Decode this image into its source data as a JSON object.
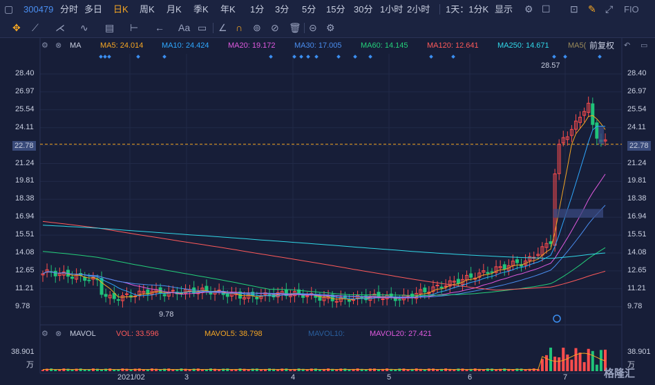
{
  "toolbar": {
    "code": "300479",
    "periods": [
      "分时",
      "多日",
      "日K",
      "周K",
      "月K",
      "季K",
      "年K",
      "1分",
      "3分",
      "5分",
      "15分",
      "30分",
      "1小时",
      "2小时",
      "1天：1分K",
      "显示",
      "FIO"
    ],
    "active": "日K"
  },
  "ma_legend": {
    "label": "MA",
    "items": [
      {
        "name": "MA5: 24.014",
        "color": "#f5a623"
      },
      {
        "name": "MA10: 24.424",
        "color": "#2fa8ff"
      },
      {
        "name": "MA20: 19.172",
        "color": "#e05adf"
      },
      {
        "name": "MA30: 17.005",
        "color": "#4a8ef0"
      },
      {
        "name": "MA60: 14.145",
        "color": "#24d07a"
      },
      {
        "name": "MA120: 12.641",
        "color": "#ff5a5a"
      },
      {
        "name": "MA250: 14.671",
        "color": "#31d8e8"
      },
      {
        "name": "MA5(",
        "color": "#9a8a5a"
      }
    ],
    "fq": "前复权"
  },
  "price_axis": [
    "28.40",
    "26.97",
    "25.54",
    "24.11",
    "22.78",
    "21.24",
    "19.81",
    "18.38",
    "16.94",
    "15.51",
    "14.08",
    "12.65",
    "11.21",
    "9.78"
  ],
  "current_price": "22.78",
  "high_label": "28.57",
  "low_label": "9.78",
  "mavol_legend": {
    "label": "MAVOL",
    "items": [
      {
        "name": "VOL: 33.596",
        "color": "#ff5a5a"
      },
      {
        "name": "MAVOL5: 38.798",
        "color": "#f5a623"
      },
      {
        "name": "MAVOL10:",
        "color": "#2a5f9e"
      },
      {
        "name": "MAVOL20: 27.421",
        "color": "#e05adf"
      }
    ]
  },
  "vol_axis": [
    "38.901",
    "万"
  ],
  "x_axis": [
    {
      "label": "2021/02"
    },
    {
      "label": "3"
    },
    {
      "label": "4"
    },
    {
      "label": "5"
    },
    {
      "label": "6"
    },
    {
      "label": "7"
    }
  ],
  "watermark": "格隆汇"
}
